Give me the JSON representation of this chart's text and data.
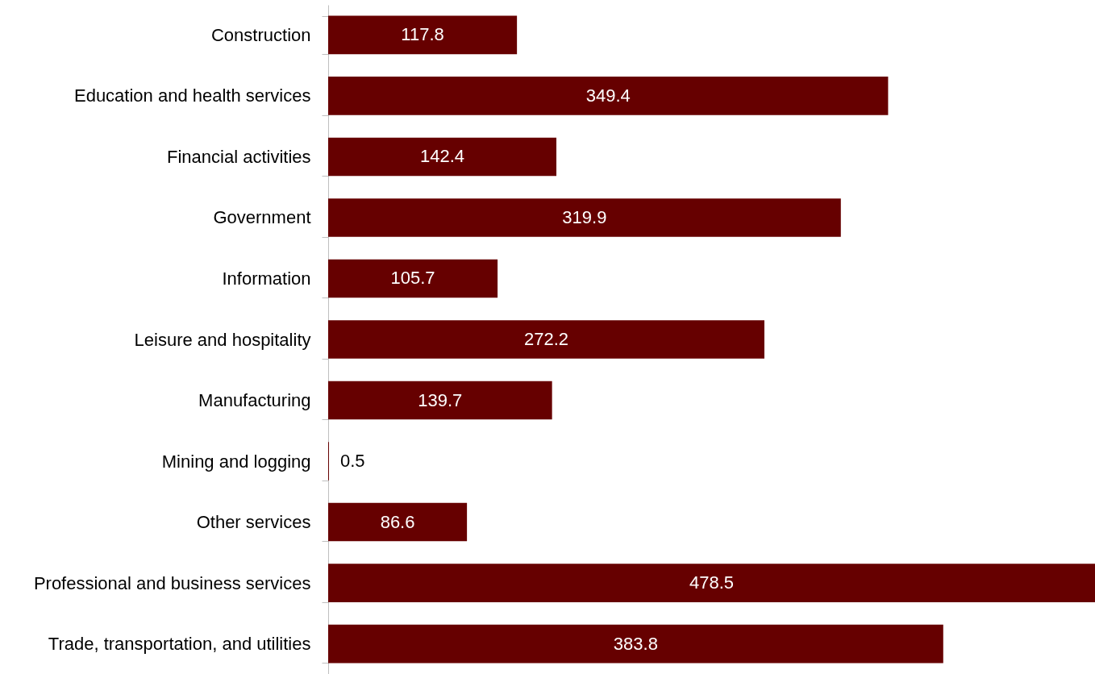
{
  "chart_data": {
    "type": "bar",
    "orientation": "horizontal",
    "categories": [
      "Construction",
      "Education and health services",
      "Financial activities",
      "Government",
      "Information",
      "Leisure and hospitality",
      "Manufacturing",
      "Mining and logging",
      "Other services",
      "Professional and business services",
      "Trade, transportation, and utilities"
    ],
    "values": [
      117.8,
      349.4,
      142.4,
      319.9,
      105.7,
      272.2,
      139.7,
      0.5,
      86.6,
      478.5,
      383.8
    ],
    "color": "#660000",
    "xlim": [
      0,
      478.5
    ],
    "data_labels": true,
    "tick_labels": "y"
  }
}
